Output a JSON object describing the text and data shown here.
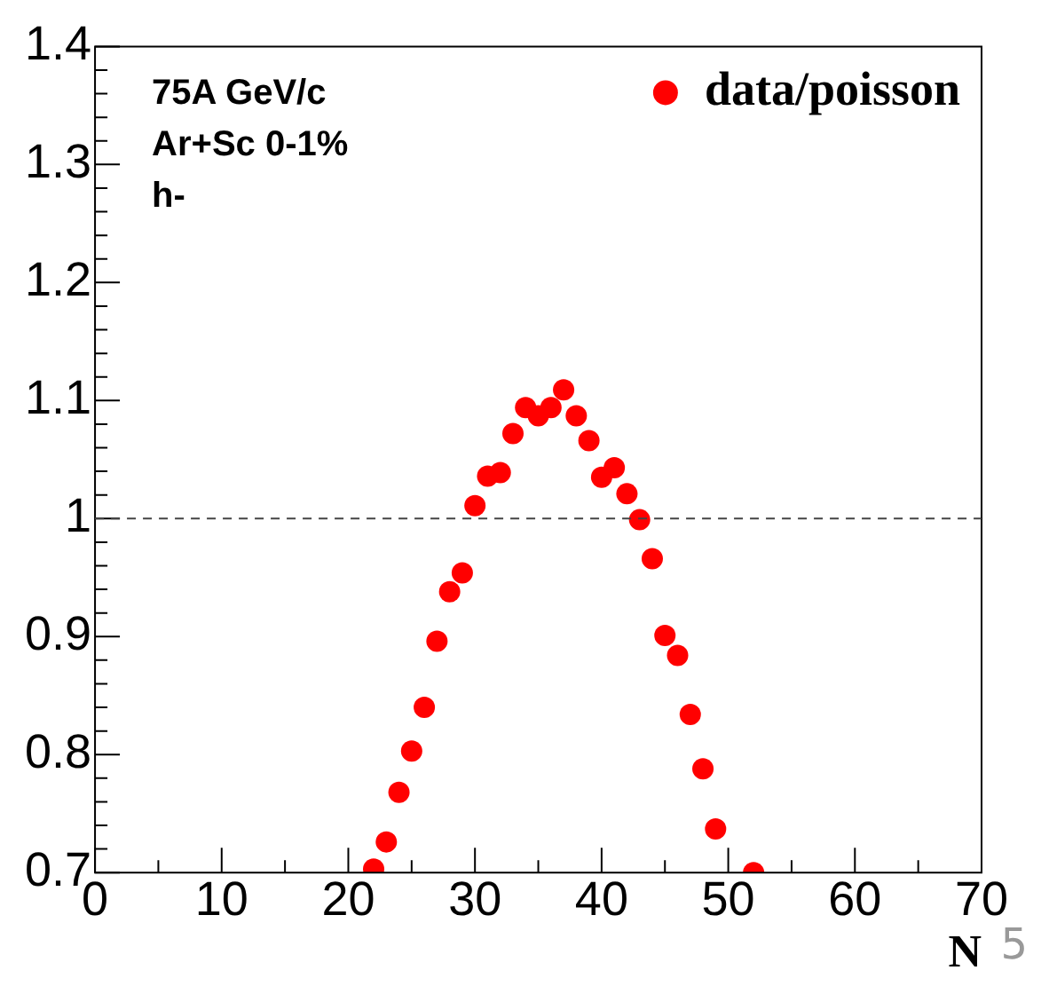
{
  "chart_data": {
    "type": "scatter",
    "xlabel": "N",
    "x": [
      22,
      23,
      24,
      25,
      26,
      27,
      28,
      29,
      30,
      31,
      32,
      33,
      34,
      35,
      36,
      37,
      38,
      39,
      40,
      41,
      42,
      43,
      44,
      45,
      46,
      47,
      48,
      49,
      52
    ],
    "series": [
      {
        "name": "data/poisson",
        "color": "#ff0000",
        "values": [
          0.703,
          0.726,
          0.768,
          0.803,
          0.84,
          0.896,
          0.938,
          0.954,
          1.011,
          1.036,
          1.039,
          1.072,
          1.094,
          1.087,
          1.094,
          1.109,
          1.087,
          1.066,
          1.035,
          1.043,
          1.021,
          0.999,
          0.966,
          0.901,
          0.884,
          0.834,
          0.788,
          0.737,
          0.7
        ]
      }
    ],
    "xlim": [
      0,
      70
    ],
    "xticks": [
      0,
      10,
      20,
      30,
      40,
      50,
      60,
      70
    ],
    "ylim": [
      0.7,
      1.4
    ],
    "yticks": [
      0.7,
      0.8,
      0.9,
      1,
      1.1,
      1.2,
      1.3,
      1.4
    ],
    "ref_lines": [
      {
        "axis": "y",
        "value": 1,
        "color": "#444444",
        "line_style": "dashed"
      }
    ],
    "marker": "circle",
    "legend": "top right",
    "grid": false,
    "annotations": [
      "75A GeV/c",
      "Ar+Sc 0-1%",
      "h-",
      "5"
    ]
  }
}
